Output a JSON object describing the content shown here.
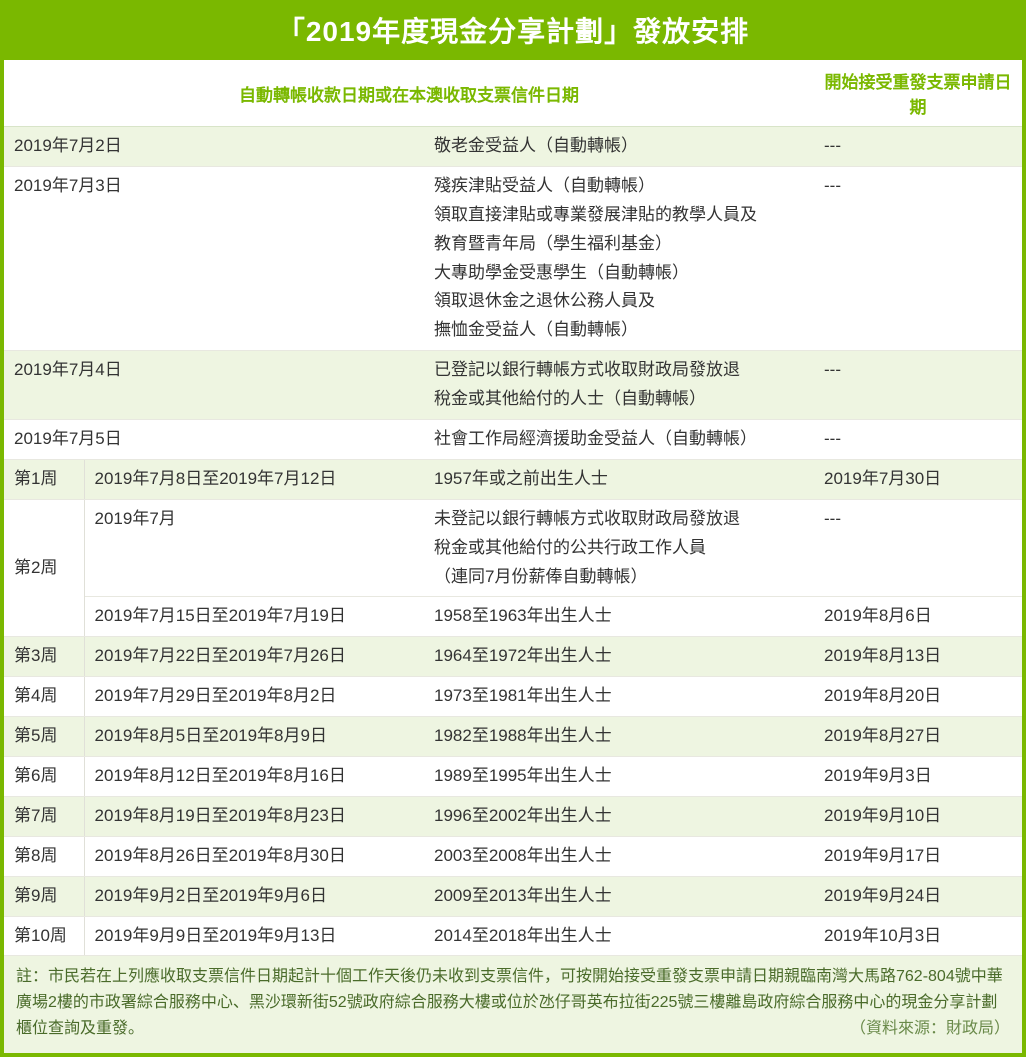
{
  "title": "「2019年度現金分享計劃」發放安排",
  "header": {
    "left": "自動轉帳收款日期或在本澳收取支票信件日期",
    "right": "開始接受重發支票申請日期"
  },
  "pre_rows": [
    {
      "date": "2019年7月2日",
      "who": "敬老金受益人（自動轉帳）",
      "re": "---"
    },
    {
      "date": "2019年7月3日",
      "who": "殘疾津貼受益人（自動轉帳）\n領取直接津貼或專業發展津貼的教學人員及\n教育暨青年局（學生福利基金）\n大專助學金受惠學生（自動轉帳）\n領取退休金之退休公務人員及\n撫恤金受益人（自動轉帳）",
      "re": "---"
    },
    {
      "date": "2019年7月4日",
      "who": "已登記以銀行轉帳方式收取財政局發放退\n稅金或其他給付的人士（自動轉帳）",
      "re": "---"
    },
    {
      "date": "2019年7月5日",
      "who": "社會工作局經濟援助金受益人（自動轉帳）",
      "re": "---"
    }
  ],
  "week1": {
    "label": "第1周",
    "date": "2019年7月8日至2019年7月12日",
    "who": "1957年或之前出生人士",
    "re": "2019年7月30日"
  },
  "week2": {
    "label": "第2周",
    "row_a": {
      "date": "2019年7月",
      "who": "未登記以銀行轉帳方式收取財政局發放退\n稅金或其他給付的公共行政工作人員\n（連同7月份薪俸自動轉帳）",
      "re": "---"
    },
    "row_b": {
      "date": "2019年7月15日至2019年7月19日",
      "who": "1958至1963年出生人士",
      "re": "2019年8月6日"
    }
  },
  "weeks_rest": [
    {
      "label": "第3周",
      "date": "2019年7月22日至2019年7月26日",
      "who": "1964至1972年出生人士",
      "re": "2019年8月13日"
    },
    {
      "label": "第4周",
      "date": "2019年7月29日至2019年8月2日",
      "who": "1973至1981年出生人士",
      "re": "2019年8月20日"
    },
    {
      "label": "第5周",
      "date": "2019年8月5日至2019年8月9日",
      "who": "1982至1988年出生人士",
      "re": "2019年8月27日"
    },
    {
      "label": "第6周",
      "date": "2019年8月12日至2019年8月16日",
      "who": "1989至1995年出生人士",
      "re": "2019年9月3日"
    },
    {
      "label": "第7周",
      "date": "2019年8月19日至2019年8月23日",
      "who": "1996至2002年出生人士",
      "re": "2019年9月10日"
    },
    {
      "label": "第8周",
      "date": "2019年8月26日至2019年8月30日",
      "who": "2003至2008年出生人士",
      "re": "2019年9月17日"
    },
    {
      "label": "第9周",
      "date": "2019年9月2日至2019年9月6日",
      "who": "2009至2013年出生人士",
      "re": "2019年9月24日"
    },
    {
      "label": "第10周",
      "date": "2019年9月9日至2019年9月13日",
      "who": "2014至2018年出生人士",
      "re": "2019年10月3日"
    }
  ],
  "footnote": "註：市民若在上列應收取支票信件日期起計十個工作天後仍未收到支票信件，可按開始接受重發支票申請日期親臨南灣大馬路762-804號中華廣場2樓的市政署綜合服務中心、黑沙環新街52號政府綜合服務大樓或位於氹仔哥英布拉街225號三樓離島政府綜合服務中心的現金分享計劃櫃位查詢及重發。",
  "source": "（資料來源：財政局）",
  "colors": {
    "brand": "#7ab800",
    "stripe": "#eef5e1",
    "text": "#333333",
    "foot_text": "#4a6b2a"
  }
}
